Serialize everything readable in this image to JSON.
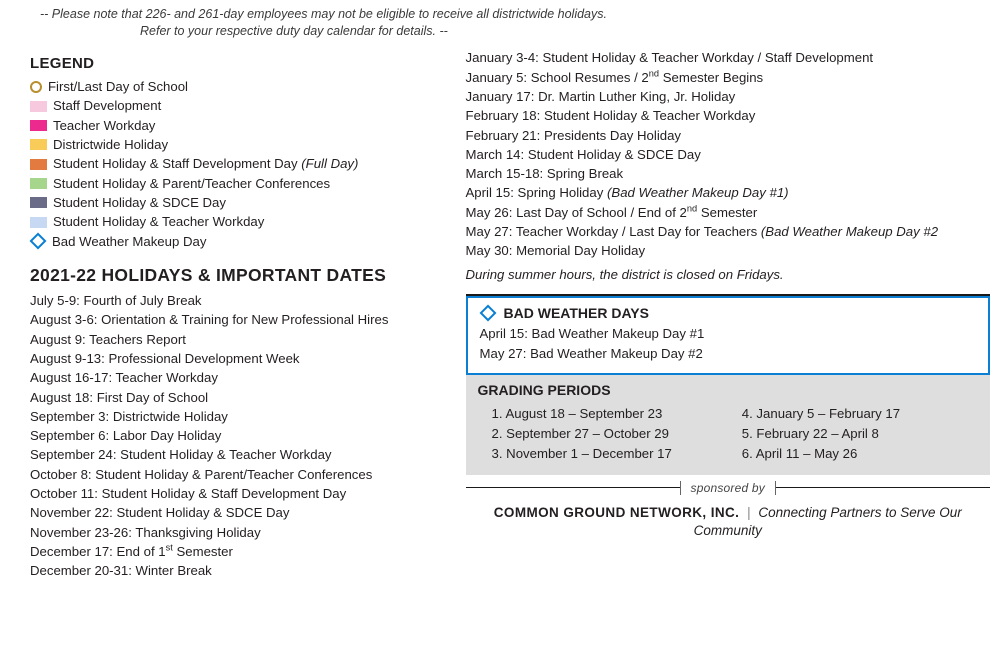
{
  "note_line1": "-- Please note that 226- and 261-day employees may not be eligible to receive all districtwide holidays.",
  "note_line2": "Refer to your respective duty day calendar for details.  --",
  "legend": {
    "title": "LEGEND",
    "items": [
      {
        "type": "circle",
        "color": "#b88f2f",
        "label": "First/Last Day of School"
      },
      {
        "type": "swatch",
        "color": "#f7c9de",
        "label": "Staff Development"
      },
      {
        "type": "swatch",
        "color": "#ec298c",
        "label": "Teacher Workday"
      },
      {
        "type": "swatch",
        "color": "#f9cc5a",
        "label": "Districtwide Holiday"
      },
      {
        "type": "swatch",
        "color": "#e37a40",
        "label": "Student Holiday & Staff Development Day",
        "suffix_italic": "(Full Day)"
      },
      {
        "type": "swatch",
        "color": "#a6d68c",
        "label": "Student Holiday & Parent/Teacher Conferences"
      },
      {
        "type": "swatch",
        "color": "#6a6c87",
        "label": "Student Holiday & SDCE Day"
      },
      {
        "type": "swatch",
        "color": "#c7d9f2",
        "label": "Student Holiday & Teacher Workday"
      },
      {
        "type": "diamond",
        "color": "#0a7fd4",
        "label": "Bad Weather Makeup Day"
      }
    ]
  },
  "holidays_title": "2021-22 HOLIDAYS & IMPORTANT DATES",
  "left_dates": [
    {
      "text": "July 5-9: Fourth of July Break"
    },
    {
      "text": "August 3-6:  Orientation & Training for New Professional Hires"
    },
    {
      "text": "August 9:  Teachers Report"
    },
    {
      "text": "August 9-13:  Professional Development Week"
    },
    {
      "text": "August 16-17:  Teacher Workday"
    },
    {
      "text": "August 18:  First Day of School"
    },
    {
      "text": "September 3: Districtwide Holiday"
    },
    {
      "text": "September 6:  Labor Day Holiday"
    },
    {
      "text": "September 24:  Student Holiday & Teacher Workday"
    },
    {
      "text": "October 8:  Student Holiday & Parent/Teacher Conferences"
    },
    {
      "text": "October 11:  Student Holiday & Staff Development Day"
    },
    {
      "text": "November 22:  Student Holiday & SDCE Day"
    },
    {
      "text": "November 23-26:  Thanksgiving Holiday"
    },
    {
      "text": "December 17:  End of 1",
      "sup": "st",
      "after": " Semester"
    },
    {
      "text": "December 20-31:  Winter Break"
    }
  ],
  "right_dates": [
    {
      "text": "January 3-4:  Student Holiday & Teacher Workday / Staff Development"
    },
    {
      "text": "January 5:  School Resumes / 2",
      "sup": "nd",
      "after": " Semester Begins"
    },
    {
      "text": "January 17:  Dr. Martin Luther King, Jr. Holiday"
    },
    {
      "text": "February 18:  Student Holiday & Teacher Workday"
    },
    {
      "text": "February 21:  Presidents Day Holiday"
    },
    {
      "text": "March 14:  Student Holiday & SDCE Day"
    },
    {
      "text": "March 15-18:  Spring Break"
    },
    {
      "text": "April 15:  Spring Holiday ",
      "italic": "(Bad Weather Makeup Day #1)"
    },
    {
      "text": "May 26:  Last Day of School / End of 2",
      "sup": "nd",
      "after": " Semester"
    },
    {
      "text": "May 27:  Teacher Workday / Last Day for Teachers ",
      "italic": "(Bad Weather Makeup Day #2"
    },
    {
      "text": "May 30:  Memorial Day Holiday"
    }
  ],
  "summer_note": "During summer hours, the district is closed on Fridays.",
  "bwd": {
    "title": "BAD WEATHER DAYS",
    "diamond_color": "#0a7fd4",
    "lines": [
      "April 15:  Bad Weather Makeup Day #1",
      "May 27:  Bad Weather Makeup Day #2"
    ]
  },
  "grading": {
    "title": "GRADING PERIODS",
    "left": [
      "1.  August 18 – September 23",
      "2.  September 27  – October 29",
      "3.  November 1 – December 17"
    ],
    "right": [
      "4.  January 5 – February 17",
      "5.  February 22 – April 8",
      "6.  April 11 – May 26"
    ]
  },
  "sponsor": {
    "label": "sponsored by",
    "name": "COMMON GROUND NETWORK, INC.",
    "tagline": "Connecting Partners to Serve Our Community"
  },
  "colors": {
    "bwd_border": "#0a7fd4",
    "grading_bg": "#dedede"
  }
}
